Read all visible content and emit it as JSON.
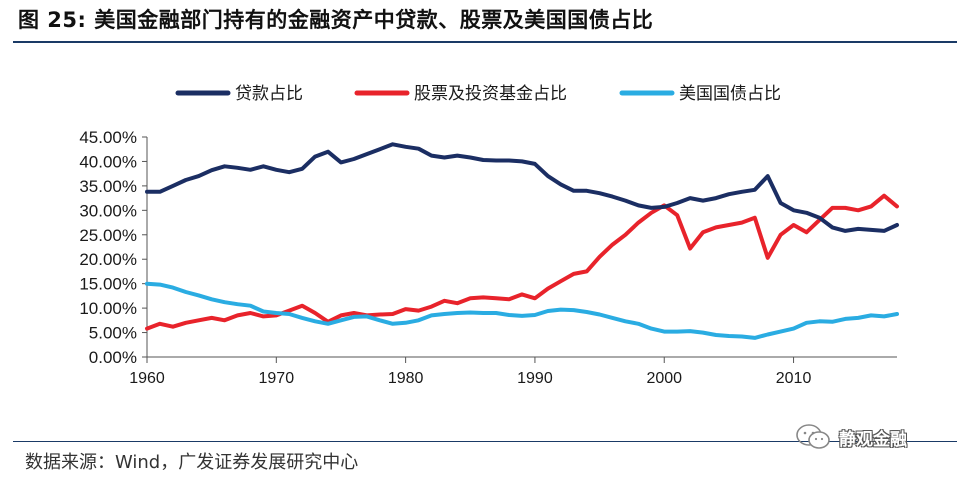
{
  "figure": {
    "title": "图 25:  美国金融部门持有的金融资产中贷款、股票及美国国债占比",
    "source": "数据来源：Wind，广发证券发展研究中心",
    "watermark": "静观金融"
  },
  "colors": {
    "loans": "#1b2e63",
    "stocks": "#e8232b",
    "treasuries": "#2aace2",
    "axis": "#555555",
    "rule": "#1a3a66"
  },
  "chart_data": {
    "type": "line",
    "title": "美国金融部门持有的金融资产中贷款、股票及美国国债占比",
    "xlabel": "",
    "ylabel": "",
    "xlim": [
      1960,
      2018
    ],
    "ylim": [
      0,
      45
    ],
    "grid": false,
    "legend_position": "top",
    "xticks": [
      1960,
      1970,
      1980,
      1990,
      2000,
      2010
    ],
    "xtick_labels": [
      "1960",
      "1970",
      "1980",
      "1990",
      "2000",
      "2010"
    ],
    "yticks": [
      0,
      5,
      10,
      15,
      20,
      25,
      30,
      35,
      40,
      45
    ],
    "ytick_labels": [
      "0.00%",
      "5.00%",
      "10.00%",
      "15.00%",
      "20.00%",
      "25.00%",
      "30.00%",
      "35.00%",
      "40.00%",
      "45.00%"
    ],
    "x": [
      1960,
      1961,
      1962,
      1963,
      1964,
      1965,
      1966,
      1967,
      1968,
      1969,
      1970,
      1971,
      1972,
      1973,
      1974,
      1975,
      1976,
      1977,
      1978,
      1979,
      1980,
      1981,
      1982,
      1983,
      1984,
      1985,
      1986,
      1987,
      1988,
      1989,
      1990,
      1991,
      1992,
      1993,
      1994,
      1995,
      1996,
      1997,
      1998,
      1999,
      2000,
      2001,
      2002,
      2003,
      2004,
      2005,
      2006,
      2007,
      2008,
      2009,
      2010,
      2011,
      2012,
      2013,
      2014,
      2015,
      2016,
      2017,
      2018
    ],
    "series": [
      {
        "name": "贷款占比",
        "color_key": "loans",
        "values": [
          33.8,
          33.8,
          35.0,
          36.2,
          37.0,
          38.2,
          39.0,
          38.7,
          38.3,
          39.0,
          38.3,
          37.8,
          38.5,
          41.0,
          42.0,
          39.8,
          40.5,
          41.5,
          42.5,
          43.5,
          43.0,
          42.6,
          41.2,
          40.8,
          41.2,
          40.8,
          40.3,
          40.2,
          40.2,
          40.0,
          39.5,
          37.0,
          35.3,
          34.0,
          34.0,
          33.5,
          32.8,
          32.0,
          31.0,
          30.5,
          30.7,
          31.5,
          32.5,
          32.0,
          32.5,
          33.3,
          33.8,
          34.2,
          37.0,
          31.5,
          30.0,
          29.5,
          28.5,
          26.5,
          25.8,
          26.2,
          26.0,
          25.8,
          27.0
        ]
      },
      {
        "name": "股票及投资基金占比",
        "color_key": "stocks",
        "values": [
          5.8,
          6.8,
          6.2,
          7.0,
          7.5,
          8.0,
          7.5,
          8.5,
          9.0,
          8.3,
          8.5,
          9.5,
          10.5,
          9.0,
          7.2,
          8.5,
          9.0,
          8.5,
          8.7,
          8.8,
          9.8,
          9.5,
          10.3,
          11.5,
          11.0,
          12.0,
          12.2,
          12.0,
          11.8,
          12.8,
          12.0,
          14.0,
          15.5,
          17.0,
          17.5,
          20.5,
          23.0,
          25.0,
          27.5,
          29.5,
          31.0,
          29.0,
          22.2,
          25.5,
          26.5,
          27.0,
          27.5,
          28.5,
          20.3,
          25.0,
          27.0,
          25.5,
          28.0,
          30.5,
          30.5,
          30.0,
          30.8,
          33.0,
          30.8
        ]
      },
      {
        "name": "美国国债占比",
        "color_key": "treasuries",
        "values": [
          15.0,
          14.8,
          14.2,
          13.3,
          12.6,
          11.8,
          11.2,
          10.8,
          10.5,
          9.3,
          9.0,
          8.8,
          8.0,
          7.3,
          6.8,
          7.5,
          8.2,
          8.3,
          7.5,
          6.8,
          7.0,
          7.5,
          8.5,
          8.8,
          9.0,
          9.1,
          9.0,
          9.0,
          8.6,
          8.4,
          8.6,
          9.4,
          9.7,
          9.6,
          9.2,
          8.7,
          8.0,
          7.3,
          6.8,
          5.8,
          5.2,
          5.2,
          5.3,
          5.0,
          4.5,
          4.3,
          4.2,
          3.9,
          4.6,
          5.2,
          5.8,
          7.0,
          7.3,
          7.2,
          7.8,
          8.0,
          8.5,
          8.3,
          8.8
        ]
      }
    ]
  }
}
